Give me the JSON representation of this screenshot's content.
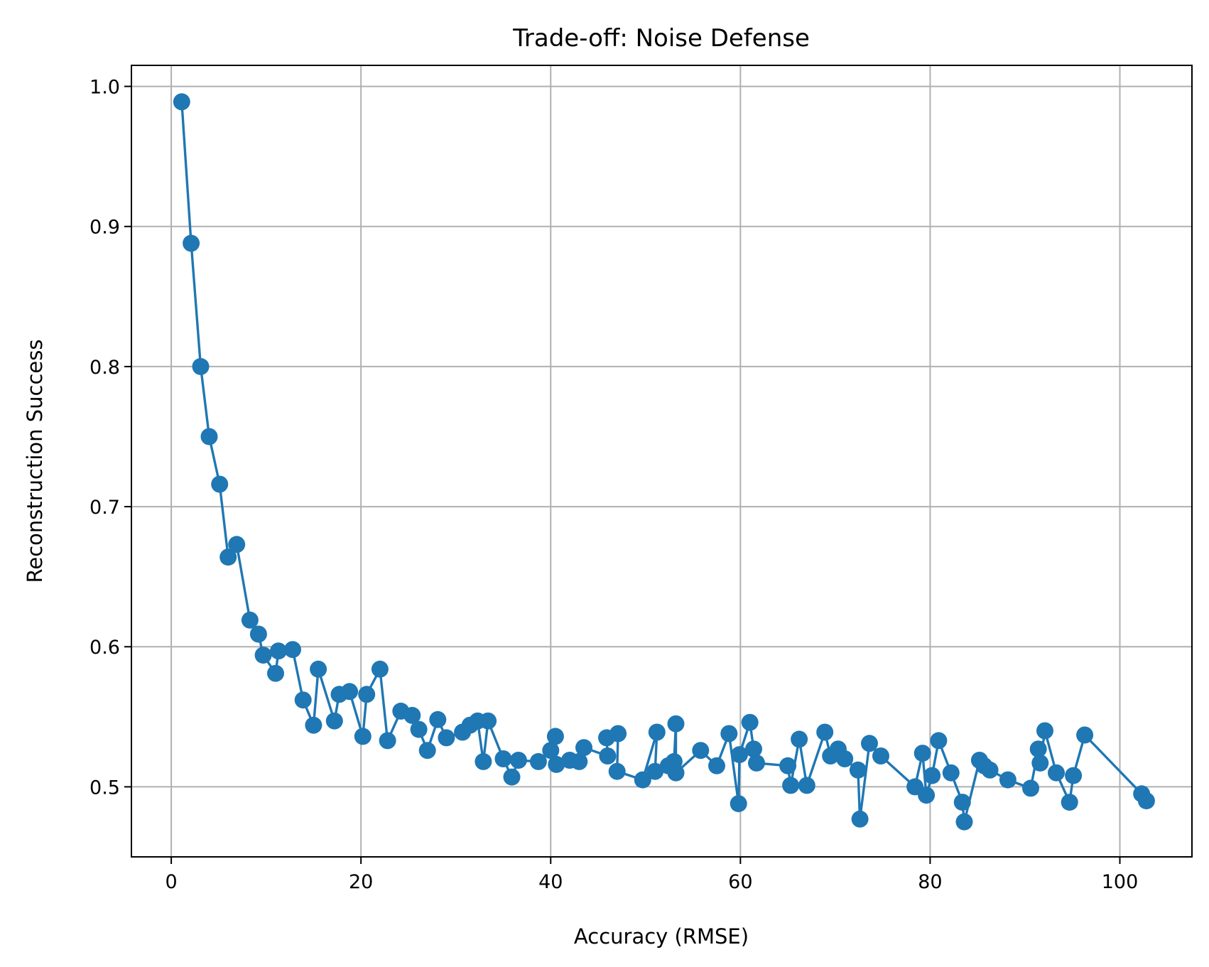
{
  "chart_data": {
    "type": "line",
    "title": "Trade-off: Noise Defense",
    "xlabel": "Accuracy (RMSE)",
    "ylabel": "Reconstruction Success",
    "xlim": [
      -4.2,
      107.6
    ],
    "ylim": [
      0.45,
      1.015
    ],
    "xticks": [
      0,
      20,
      40,
      60,
      80,
      100
    ],
    "yticks": [
      0.5,
      0.6,
      0.7,
      0.8,
      0.9,
      1.0
    ],
    "xtick_labels": [
      "0",
      "20",
      "40",
      "60",
      "80",
      "100"
    ],
    "ytick_labels": [
      "0.5",
      "0.6",
      "0.7",
      "0.8",
      "0.9",
      "1.0"
    ],
    "grid": true,
    "marker": "circle",
    "color": "#1f77b4",
    "series": [
      {
        "x": [
          1.1,
          2.1,
          3.1,
          4.0,
          5.1,
          6.0,
          6.9,
          8.3,
          9.2,
          9.7,
          11.0,
          11.3,
          12.8,
          13.9,
          15.0,
          15.5,
          17.2,
          17.7,
          18.8,
          20.2,
          20.6,
          22.0,
          22.8,
          24.2,
          25.4,
          26.1,
          27.0,
          28.1,
          29.0,
          30.7,
          31.5,
          32.3,
          32.9,
          33.4,
          35.0,
          35.9,
          36.6,
          38.7,
          40.0,
          40.5,
          40.6,
          42.0,
          43.0,
          43.5,
          46.0,
          45.9,
          47.1,
          47.0,
          49.7,
          51.2,
          51.0,
          52.4,
          53.0,
          53.2,
          53.2,
          55.8,
          57.5,
          58.8,
          59.8,
          59.9,
          61.0,
          61.4,
          61.7,
          65.0,
          65.3,
          66.2,
          67.0,
          68.9,
          69.5,
          70.3,
          71.0,
          72.4,
          72.6,
          73.6,
          74.8,
          78.4,
          79.2,
          79.6,
          80.2,
          80.9,
          82.2,
          83.4,
          83.6,
          85.2,
          85.7,
          86.3,
          88.2,
          90.6,
          91.4,
          91.6,
          92.1,
          93.3,
          94.7,
          95.1,
          96.3,
          102.3,
          102.8
        ],
        "y": [
          0.989,
          0.888,
          0.8,
          0.75,
          0.716,
          0.664,
          0.673,
          0.619,
          0.609,
          0.594,
          0.581,
          0.597,
          0.598,
          0.562,
          0.544,
          0.584,
          0.547,
          0.566,
          0.568,
          0.536,
          0.566,
          0.584,
          0.533,
          0.554,
          0.551,
          0.541,
          0.526,
          0.548,
          0.535,
          0.539,
          0.544,
          0.547,
          0.518,
          0.547,
          0.52,
          0.507,
          0.519,
          0.518,
          0.526,
          0.536,
          0.516,
          0.519,
          0.518,
          0.528,
          0.522,
          0.535,
          0.538,
          0.511,
          0.505,
          0.539,
          0.511,
          0.515,
          0.518,
          0.545,
          0.51,
          0.526,
          0.515,
          0.538,
          0.488,
          0.523,
          0.546,
          0.527,
          0.517,
          0.515,
          0.501,
          0.534,
          0.501,
          0.539,
          0.522,
          0.527,
          0.52,
          0.512,
          0.477,
          0.531,
          0.522,
          0.5,
          0.524,
          0.494,
          0.508,
          0.533,
          0.51,
          0.489,
          0.475,
          0.519,
          0.515,
          0.512,
          0.505,
          0.499,
          0.527,
          0.517,
          0.54,
          0.51,
          0.489,
          0.508,
          0.537,
          0.495,
          0.49
        ]
      }
    ]
  }
}
